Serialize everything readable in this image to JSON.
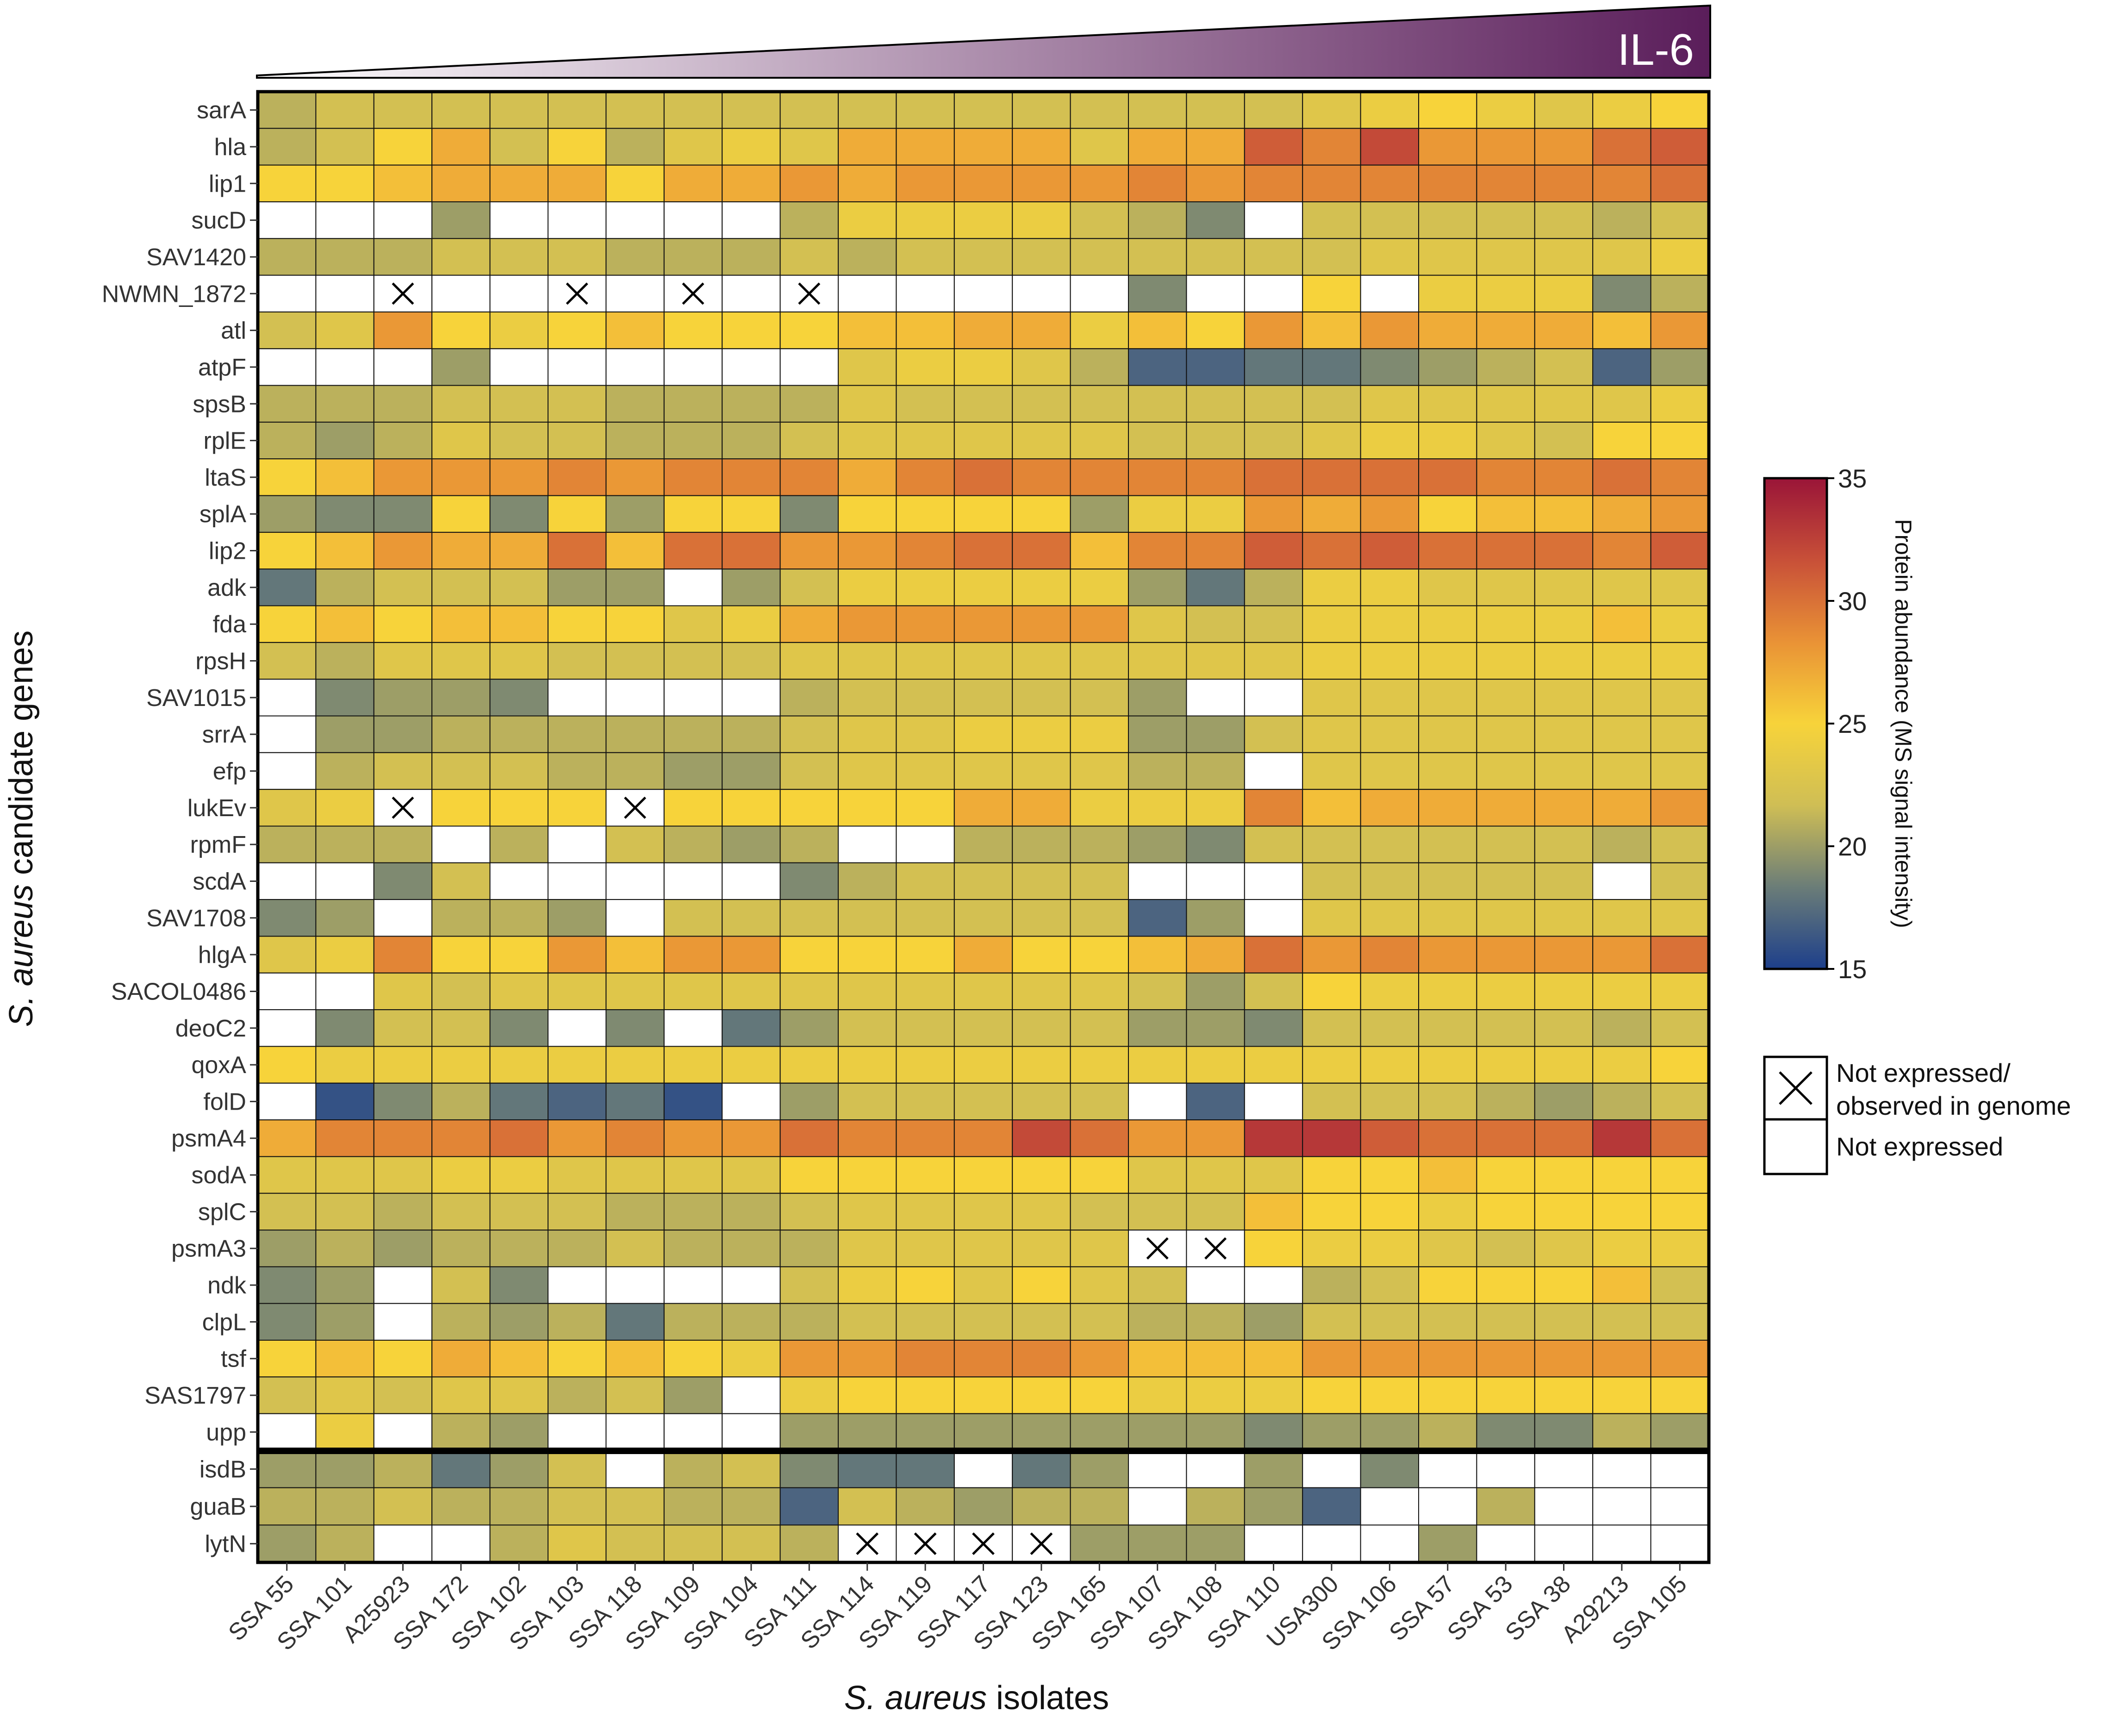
{
  "chart_data": {
    "type": "heatmap",
    "title": "IL-6",
    "xlabel": "S. aureus isolates",
    "ylabel": "S. aureus candidate genes",
    "ylabel_italic_part": "S. aureus",
    "ylabel_rest": " candidate genes",
    "xlabel_italic_part": "S. aureus",
    "xlabel_rest": " isolates",
    "isolates": [
      "SSA 55",
      "SSA 101",
      "A25923",
      "SSA 172",
      "SSA 102",
      "SSA 103",
      "SSA 118",
      "SSA 109",
      "SSA 104",
      "SSA 111",
      "SSA 114",
      "SSA 119",
      "SSA 117",
      "SSA 123",
      "SSA 165",
      "SSA 107",
      "SSA 108",
      "SSA 110",
      "USA300",
      "SSA 106",
      "SSA 57",
      "SSA 53",
      "SSA 38",
      "A29213",
      "SSA 105"
    ],
    "genes": [
      "sarA",
      "hla",
      "lip1",
      "sucD",
      "SAV1420",
      "NWMN_1872",
      "atl",
      "atpF",
      "spsB",
      "rplE",
      "ltaS",
      "splA",
      "lip2",
      "adk",
      "fda",
      "rpsH",
      "SAV1015",
      "srrA",
      "efp",
      "lukEv",
      "rpmF",
      "scdA",
      "SAV1708",
      "hlgA",
      "SACOL0486",
      "deoC2",
      "qoxA",
      "folD",
      "psmA4",
      "sodA",
      "splC",
      "psmA3",
      "ndk",
      "clpL",
      "tsf",
      "SAS1797",
      "upp",
      "isdB",
      "guaB",
      "lytN"
    ],
    "separator_after_row": 36,
    "value_legend": "Values are protein abundance (MS signal intensity); 0 = not expressed (white), -1 = not expressed / not observed in genome (X)",
    "values": [
      [
        21,
        22,
        22,
        22,
        22,
        22,
        22,
        22,
        22,
        22,
        22,
        22,
        22,
        22,
        22,
        22,
        22,
        22,
        23,
        24,
        25,
        24,
        23,
        24,
        25
      ],
      [
        21,
        22,
        25,
        27,
        22,
        25,
        21,
        23,
        24,
        23,
        27,
        27,
        27,
        27,
        23,
        27,
        27,
        31,
        29,
        32,
        28,
        28,
        28,
        30,
        31
      ],
      [
        25,
        25,
        26,
        27,
        27,
        27,
        25,
        27,
        27,
        28,
        27,
        28,
        28,
        28,
        28,
        29,
        28,
        29,
        29,
        29,
        29,
        29,
        29,
        29,
        30
      ],
      [
        0,
        0,
        0,
        20,
        0,
        0,
        0,
        0,
        0,
        21,
        24,
        24,
        24,
        24,
        22,
        21,
        19,
        0,
        22,
        22,
        22,
        22,
        22,
        21,
        22
      ],
      [
        21,
        21,
        21,
        22,
        22,
        22,
        21,
        21,
        21,
        22,
        21,
        22,
        22,
        22,
        22,
        22,
        22,
        22,
        22,
        23,
        23,
        23,
        23,
        23,
        24
      ],
      [
        0,
        0,
        -1,
        0,
        0,
        -1,
        0,
        -1,
        0,
        -1,
        0,
        0,
        0,
        0,
        0,
        19,
        0,
        0,
        25,
        0,
        24,
        24,
        24,
        19,
        21
      ],
      [
        22,
        23,
        28,
        25,
        24,
        25,
        26,
        25,
        25,
        25,
        26,
        26,
        27,
        27,
        24,
        26,
        25,
        28,
        26,
        28,
        27,
        27,
        27,
        26,
        28
      ],
      [
        0,
        0,
        0,
        20,
        0,
        0,
        0,
        0,
        0,
        0,
        23,
        24,
        24,
        23,
        21,
        17,
        17,
        18,
        18,
        19,
        20,
        21,
        22,
        17,
        20
      ],
      [
        21,
        21,
        21,
        22,
        22,
        22,
        21,
        21,
        21,
        21,
        23,
        22,
        22,
        22,
        22,
        22,
        22,
        22,
        22,
        23,
        23,
        23,
        23,
        23,
        24
      ],
      [
        21,
        20,
        21,
        23,
        22,
        22,
        21,
        21,
        21,
        22,
        23,
        23,
        23,
        23,
        23,
        22,
        22,
        22,
        23,
        24,
        24,
        23,
        22,
        25,
        25
      ],
      [
        25,
        26,
        28,
        28,
        28,
        29,
        28,
        29,
        29,
        29,
        27,
        29,
        30,
        29,
        29,
        29,
        29,
        30,
        30,
        30,
        30,
        29,
        29,
        30,
        29
      ],
      [
        20,
        19,
        19,
        25,
        19,
        25,
        20,
        25,
        25,
        19,
        25,
        25,
        25,
        25,
        20,
        24,
        24,
        28,
        27,
        28,
        25,
        26,
        26,
        27,
        28
      ],
      [
        25,
        26,
        28,
        27,
        27,
        30,
        26,
        30,
        30,
        28,
        28,
        29,
        30,
        30,
        26,
        29,
        29,
        31,
        30,
        31,
        30,
        30,
        30,
        29,
        31
      ],
      [
        18,
        21,
        22,
        22,
        22,
        20,
        20,
        0,
        20,
        22,
        24,
        24,
        24,
        24,
        24,
        20,
        18,
        21,
        24,
        24,
        23,
        23,
        23,
        23,
        23
      ],
      [
        25,
        26,
        25,
        26,
        26,
        25,
        25,
        23,
        24,
        27,
        28,
        28,
        28,
        28,
        28,
        23,
        22,
        22,
        24,
        24,
        24,
        24,
        24,
        26,
        24
      ],
      [
        22,
        21,
        23,
        23,
        23,
        22,
        22,
        22,
        22,
        23,
        23,
        23,
        23,
        23,
        23,
        23,
        23,
        23,
        24,
        24,
        24,
        24,
        24,
        24,
        24
      ],
      [
        0,
        19,
        20,
        20,
        19,
        0,
        0,
        0,
        0,
        21,
        22,
        22,
        22,
        22,
        22,
        20,
        0,
        0,
        23,
        23,
        23,
        23,
        23,
        23,
        23
      ],
      [
        0,
        20,
        20,
        21,
        21,
        21,
        21,
        21,
        21,
        22,
        23,
        23,
        24,
        24,
        24,
        20,
        20,
        22,
        23,
        23,
        23,
        23,
        23,
        23,
        23
      ],
      [
        0,
        21,
        22,
        22,
        22,
        21,
        21,
        20,
        20,
        22,
        23,
        23,
        23,
        23,
        23,
        21,
        21,
        0,
        23,
        23,
        23,
        23,
        23,
        23,
        23
      ],
      [
        23,
        24,
        -1,
        25,
        25,
        25,
        -1,
        25,
        25,
        25,
        25,
        25,
        27,
        27,
        24,
        24,
        24,
        29,
        26,
        27,
        27,
        27,
        27,
        27,
        28
      ],
      [
        21,
        21,
        21,
        0,
        21,
        0,
        22,
        21,
        20,
        21,
        0,
        0,
        21,
        21,
        21,
        20,
        19,
        22,
        22,
        22,
        22,
        22,
        22,
        21,
        22
      ],
      [
        0,
        0,
        19,
        22,
        0,
        0,
        0,
        0,
        0,
        19,
        21,
        22,
        22,
        22,
        22,
        0,
        0,
        0,
        22,
        22,
        22,
        22,
        22,
        0,
        22
      ],
      [
        19,
        20,
        0,
        21,
        21,
        20,
        0,
        22,
        22,
        22,
        22,
        22,
        22,
        22,
        22,
        17,
        20,
        0,
        23,
        23,
        23,
        23,
        23,
        23,
        23
      ],
      [
        23,
        24,
        29,
        25,
        25,
        28,
        26,
        28,
        28,
        25,
        25,
        25,
        27,
        25,
        25,
        26,
        27,
        30,
        28,
        29,
        28,
        28,
        28,
        28,
        30
      ],
      [
        0,
        0,
        23,
        22,
        23,
        23,
        23,
        23,
        23,
        23,
        23,
        23,
        23,
        23,
        23,
        22,
        20,
        22,
        25,
        24,
        24,
        24,
        24,
        24,
        24
      ],
      [
        0,
        19,
        22,
        22,
        19,
        0,
        19,
        0,
        18,
        20,
        22,
        22,
        22,
        22,
        22,
        20,
        20,
        19,
        22,
        22,
        22,
        22,
        22,
        21,
        22
      ],
      [
        25,
        24,
        24,
        24,
        24,
        24,
        24,
        24,
        24,
        24,
        24,
        24,
        24,
        24,
        24,
        24,
        24,
        24,
        24,
        24,
        24,
        24,
        24,
        24,
        25
      ],
      [
        0,
        16,
        19,
        21,
        18,
        17,
        18,
        16,
        0,
        20,
        22,
        22,
        22,
        22,
        22,
        0,
        17,
        0,
        22,
        22,
        22,
        21,
        20,
        21,
        22
      ],
      [
        27,
        29,
        29,
        29,
        30,
        28,
        29,
        28,
        28,
        30,
        29,
        29,
        29,
        32,
        30,
        28,
        28,
        33,
        33,
        31,
        30,
        30,
        30,
        33,
        30
      ],
      [
        23,
        23,
        23,
        24,
        24,
        23,
        23,
        23,
        23,
        25,
        25,
        25,
        25,
        25,
        25,
        23,
        23,
        23,
        25,
        25,
        26,
        25,
        25,
        25,
        25
      ],
      [
        22,
        22,
        21,
        22,
        22,
        22,
        21,
        21,
        21,
        22,
        23,
        23,
        23,
        23,
        22,
        22,
        22,
        26,
        25,
        25,
        24,
        25,
        25,
        25,
        25
      ],
      [
        20,
        21,
        20,
        21,
        21,
        21,
        22,
        21,
        21,
        21,
        23,
        23,
        23,
        23,
        23,
        -1,
        -1,
        25,
        24,
        24,
        23,
        22,
        23,
        24,
        24
      ],
      [
        19,
        20,
        0,
        22,
        19,
        0,
        0,
        0,
        0,
        22,
        24,
        25,
        23,
        25,
        23,
        22,
        0,
        0,
        21,
        22,
        25,
        25,
        25,
        26,
        22
      ],
      [
        19,
        20,
        0,
        21,
        20,
        21,
        18,
        21,
        21,
        21,
        22,
        22,
        22,
        22,
        22,
        21,
        21,
        20,
        22,
        22,
        22,
        22,
        22,
        22,
        22
      ],
      [
        25,
        26,
        25,
        27,
        26,
        25,
        26,
        25,
        24,
        28,
        28,
        29,
        29,
        29,
        28,
        26,
        26,
        26,
        28,
        28,
        28,
        28,
        28,
        28,
        28
      ],
      [
        22,
        23,
        22,
        23,
        23,
        21,
        22,
        20,
        0,
        24,
        25,
        25,
        25,
        25,
        25,
        24,
        24,
        24,
        25,
        25,
        25,
        25,
        25,
        25,
        25
      ],
      [
        0,
        24,
        0,
        21,
        20,
        0,
        0,
        0,
        0,
        20,
        20,
        20,
        20,
        20,
        20,
        20,
        20,
        19,
        20,
        20,
        21,
        19,
        19,
        21,
        20
      ],
      [
        20,
        20,
        21,
        18,
        20,
        22,
        0,
        21,
        22,
        19,
        18,
        18,
        0,
        18,
        20,
        0,
        0,
        20,
        0,
        19,
        0,
        0,
        0,
        0,
        0
      ],
      [
        21,
        21,
        22,
        21,
        21,
        22,
        22,
        21,
        21,
        17,
        22,
        21,
        20,
        21,
        21,
        0,
        21,
        20,
        17,
        0,
        0,
        21,
        0,
        0,
        0
      ],
      [
        20,
        21,
        0,
        0,
        21,
        23,
        22,
        22,
        22,
        21,
        -1,
        -1,
        -1,
        -1,
        20,
        20,
        20,
        0,
        0,
        0,
        20,
        0,
        0,
        0,
        0
      ]
    ],
    "colorbar": {
      "label": "Protein abundance (MS signal intensity)",
      "min": 15,
      "max": 35,
      "ticks": [
        "15",
        "20",
        "25",
        "30",
        "35"
      ],
      "colors": [
        "#1d3f8b",
        "#6b7d78",
        "#cfbe55",
        "#f7d33a",
        "#e99236",
        "#c85038",
        "#9a1538"
      ]
    },
    "legend": {
      "not_expressed_genome": [
        "Not expressed/",
        "observed in genome"
      ],
      "not_expressed": "Not expressed"
    },
    "triangle_colors": [
      "#ffffff",
      "#5a1d5a"
    ]
  }
}
